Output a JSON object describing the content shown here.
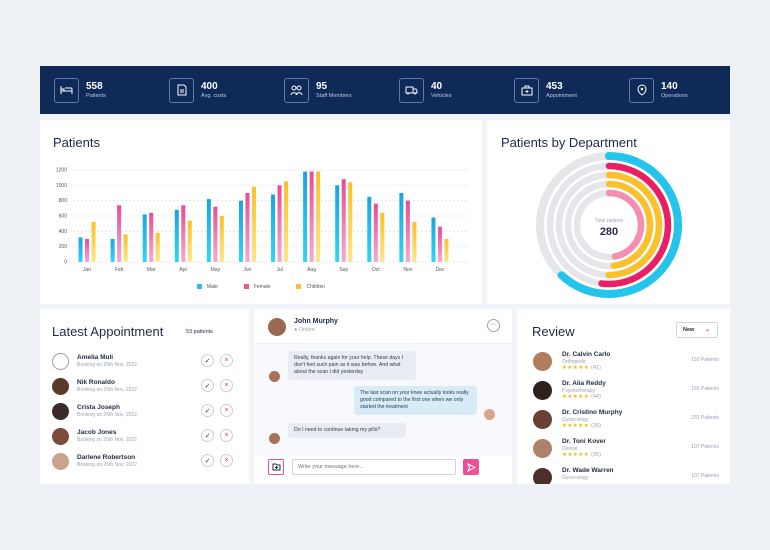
{
  "stats": [
    {
      "icon": "bed-icon",
      "value": "558",
      "label": "Patients"
    },
    {
      "icon": "receipt-icon",
      "value": "400",
      "label": "Avg. costs"
    },
    {
      "icon": "staff-icon",
      "value": "95",
      "label": "Staff Members"
    },
    {
      "icon": "ambulance-icon",
      "value": "40",
      "label": "Vehicles"
    },
    {
      "icon": "medkit-icon",
      "value": "453",
      "label": "Appointment"
    },
    {
      "icon": "operation-icon",
      "value": "140",
      "label": "Operations"
    }
  ],
  "patients_card": {
    "title": "Patients"
  },
  "chart_data": {
    "type": "bar",
    "categories": [
      "Jan",
      "Feb",
      "Mar",
      "Apr",
      "May",
      "Jun",
      "Jul",
      "Aug",
      "Sep",
      "Oct",
      "Nov",
      "Dec"
    ],
    "series": [
      {
        "name": "Male",
        "values": [
          320,
          300,
          620,
          680,
          820,
          800,
          880,
          1180,
          1000,
          850,
          900,
          580
        ],
        "color": "#25c4ec"
      },
      {
        "name": "Female",
        "values": [
          300,
          740,
          640,
          740,
          720,
          900,
          1000,
          1180,
          1080,
          760,
          800,
          460
        ],
        "color": "#f472b6"
      },
      {
        "name": "Children",
        "values": [
          520,
          360,
          380,
          540,
          600,
          980,
          1050,
          1180,
          1040,
          640,
          520,
          300
        ],
        "color": "#fbc02d"
      }
    ],
    "yticks": [
      "0",
      "200",
      "400",
      "600",
      "800",
      "1000",
      "1200"
    ],
    "ylim": [
      0,
      1200
    ]
  },
  "dept_card": {
    "title": "Patients by Department",
    "center_label": "Total patiens",
    "center_value": "280",
    "rings": [
      {
        "color": "#25c4ec",
        "fraction": 0.62
      },
      {
        "color": "#e91e63",
        "fraction": 0.52
      },
      {
        "color": "#fbc02d",
        "fraction": 0.5
      },
      {
        "color": "#fbc02d",
        "fraction": 0.48
      },
      {
        "color": "#f48fb1",
        "fraction": 0.47
      }
    ]
  },
  "appointments": {
    "title": "Latest Appointment",
    "count": "53 patients",
    "items": [
      {
        "name": "Amelia Muli",
        "sub": "Booking on 26th Nov, 2022"
      },
      {
        "name": "Nik Ronaldo",
        "sub": "Booking on 26th Nov, 2022"
      },
      {
        "name": "Crista Joseph",
        "sub": "Booking on 26th Nov, 2022"
      },
      {
        "name": "Jacob Jones",
        "sub": "Booking on 26th Nov, 2022"
      },
      {
        "name": "Darlene Robertson",
        "sub": "Booking on 26th Nov, 2022"
      }
    ]
  },
  "chat": {
    "name": "John Murphy",
    "status": "Online",
    "messages": [
      {
        "dir": "in",
        "text": "Really, thanks again for your help. These days I don't feel such pain as it was before. And what about the scan I did yesterday"
      },
      {
        "dir": "out",
        "text": "The last scan on your knee actually looks really good compared to the first one when we only started the treatment"
      },
      {
        "dir": "in",
        "text": "Do I need to continue taking my pills?"
      }
    ],
    "placeholder": "Write your message here..."
  },
  "review": {
    "title": "Review",
    "filter": "New",
    "items": [
      {
        "name": "Dr. Calvin Carlo",
        "spec": "Orthopedic",
        "reviews": "(41)",
        "patients": "150 Patients"
      },
      {
        "name": "Dr. Alia Reddy",
        "spec": "Psychotherapy",
        "reviews": "(44)",
        "patients": "155 Patients"
      },
      {
        "name": "Dr. Cristino Murphy",
        "spec": "Gynecology",
        "reviews": "(26)",
        "patients": "231 Patients"
      },
      {
        "name": "Dr. Toni Kover",
        "spec": "Dentist",
        "reviews": "(26)",
        "patients": "107 Patients"
      },
      {
        "name": "Dr. Wade Warren",
        "spec": "Gynecology",
        "reviews": "",
        "patients": "107 Patients"
      }
    ]
  }
}
